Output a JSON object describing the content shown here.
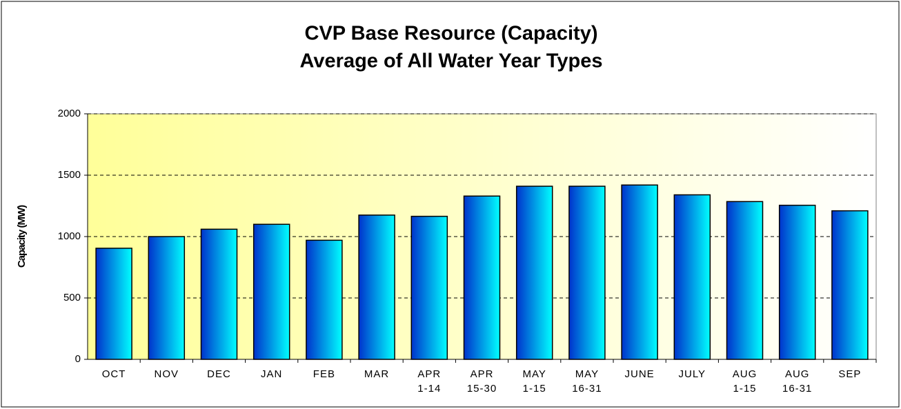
{
  "chart_data": {
    "type": "bar",
    "title": [
      "CVP Base Resource (Capacity)",
      "Average of All Water Year Types"
    ],
    "y_label": "Capacity (MW)",
    "categories": [
      [
        "OCT"
      ],
      [
        "NOV"
      ],
      [
        "DEC"
      ],
      [
        "JAN"
      ],
      [
        "FEB"
      ],
      [
        "MAR"
      ],
      [
        "APR",
        "1-14"
      ],
      [
        "APR",
        "15-30"
      ],
      [
        "MAY",
        "1-15"
      ],
      [
        "MAY",
        "16-31"
      ],
      [
        "JUNE"
      ],
      [
        "JULY"
      ],
      [
        "AUG",
        "1-15"
      ],
      [
        "AUG",
        "16-31"
      ],
      [
        "SEP"
      ]
    ],
    "values": [
      905,
      1000,
      1060,
      1100,
      970,
      1175,
      1165,
      1330,
      1410,
      1410,
      1420,
      1340,
      1285,
      1255,
      1210
    ],
    "color": "#00ccff",
    "ylim": [
      0,
      2000
    ],
    "yticks": [
      0,
      500,
      1000,
      1500,
      2000
    ],
    "grid": true
  }
}
